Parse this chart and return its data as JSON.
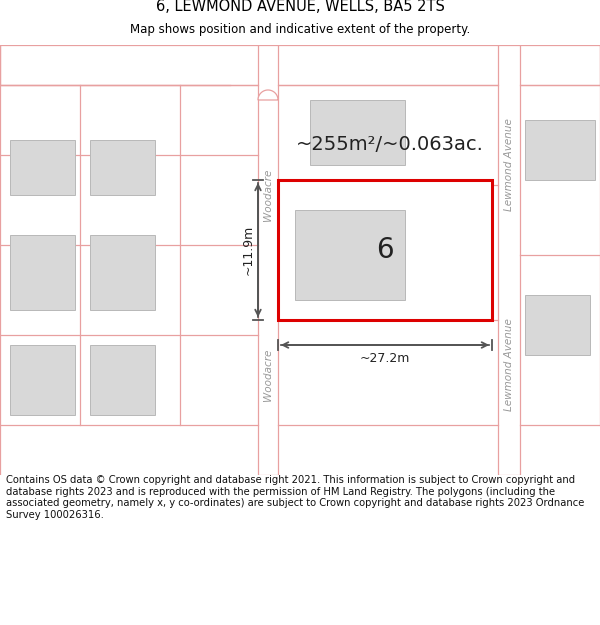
{
  "title": "6, LEWMOND AVENUE, WELLS, BA5 2TS",
  "subtitle": "Map shows position and indicative extent of the property.",
  "area_text": "~255m²/~0.063ac.",
  "label_6": "6",
  "dim_width": "~27.2m",
  "dim_height": "~11.9m",
  "road_label_woodacre_top": "Woodacre",
  "road_label_woodacre_bot": "Woodacre",
  "road_label_lewmond_top": "Lewmond Avenue",
  "road_label_lewmond_bot": "Lewmond Avenue",
  "footer": "Contains OS data © Crown copyright and database right 2021. This information is subject to Crown copyright and database rights 2023 and is reproduced with the permission of HM Land Registry. The polygons (including the associated geometry, namely x, y co-ordinates) are subject to Crown copyright and database rights 2023 Ordnance Survey 100026316.",
  "bg_color": "#ffffff",
  "map_bg": "#ffffff",
  "road_line_color": "#e8a0a0",
  "building_color": "#d8d8d8",
  "building_edge": "#b8b8b8",
  "road_strip_color": "#f0f0f0",
  "highlight_rect_color": "#dd0000",
  "line_color": "#555555",
  "text_color": "#222222",
  "road_label_color": "#999999",
  "title_color": "#000000",
  "footer_fontsize": 7.2,
  "title_fontsize": 10.5,
  "subtitle_fontsize": 8.5
}
